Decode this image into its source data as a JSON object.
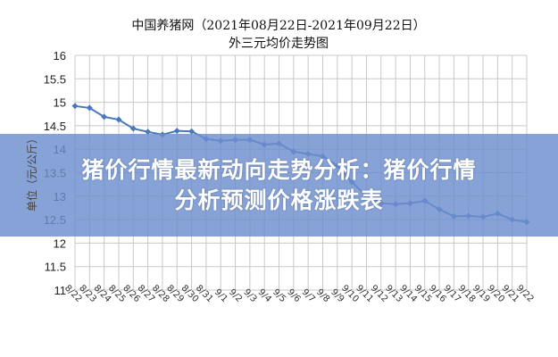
{
  "chart_data": {
    "type": "line",
    "title": "中国养猪网（2021年08月22日-2021年09月22日）",
    "subtitle": "外三元均价走势图",
    "ylabel": "单位（元/公斤）",
    "xlabel": "",
    "ylim": [
      11,
      16
    ],
    "yticks": [
      "16",
      "15.5",
      "15",
      "14.5",
      "14",
      "13.5",
      "13",
      "12.5",
      "12",
      "11.5",
      "11"
    ],
    "grid": true,
    "color": "#4a78bd",
    "categories": [
      "8/22",
      "8/23",
      "8/24",
      "8/25",
      "8/26",
      "8/27",
      "8/28",
      "8/29",
      "8/30",
      "8/31",
      "9/1",
      "9/2",
      "9/3",
      "9/4",
      "9/5",
      "9/6",
      "9/7",
      "9/8",
      "9/9",
      "9/10",
      "9/11",
      "9/12",
      "9/13",
      "9/14",
      "9/15",
      "9/16",
      "9/17",
      "9/18",
      "9/19",
      "9/20",
      "9/21",
      "9/22"
    ],
    "values": [
      14.92,
      14.88,
      14.69,
      14.63,
      14.44,
      14.37,
      14.31,
      14.39,
      14.38,
      14.22,
      14.18,
      14.2,
      14.2,
      14.1,
      14.12,
      13.95,
      13.9,
      13.85,
      13.65,
      13.3,
      13.0,
      12.85,
      12.83,
      12.85,
      12.9,
      12.72,
      12.57,
      12.58,
      12.56,
      12.63,
      12.5,
      12.45
    ]
  },
  "banner": {
    "line1": "猪价行情最新动向走势分析：猪价行情",
    "line2": "分析预测价格涨跌表"
  }
}
